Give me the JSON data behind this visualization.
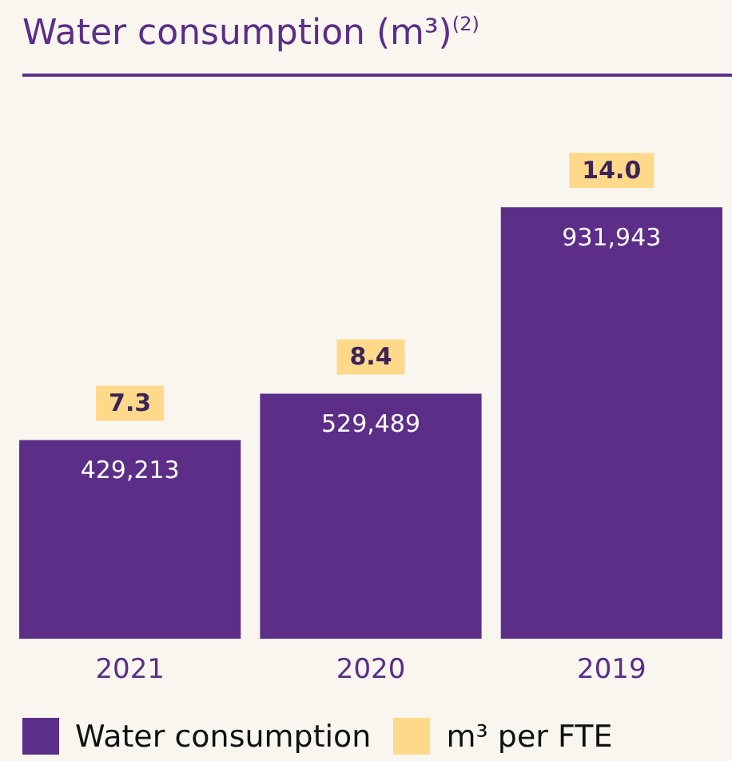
{
  "chart_data": {
    "type": "bar",
    "title": "Water consumption (m³)$^{(2)}$",
    "categories": [
      "2021",
      "2020",
      "2019"
    ],
    "series": [
      {
        "name": "Water consumption",
        "color": "#5c2e87",
        "values": [
          429213,
          529489,
          931943
        ],
        "value_labels": [
          "429,213",
          "529,489",
          "931,943"
        ]
      }
    ],
    "annotations": [
      {
        "text": "7.3",
        "x": "2021",
        "y": 429213
      },
      {
        "text": "8.4",
        "x": "2020",
        "y": 529489
      },
      {
        "text": "14.0",
        "x": "2019",
        "y": 931943
      },
      "m³ per FTE"
    ],
    "legend": "bottom left",
    "grid": false,
    "tick_labels": "x"
  }
}
